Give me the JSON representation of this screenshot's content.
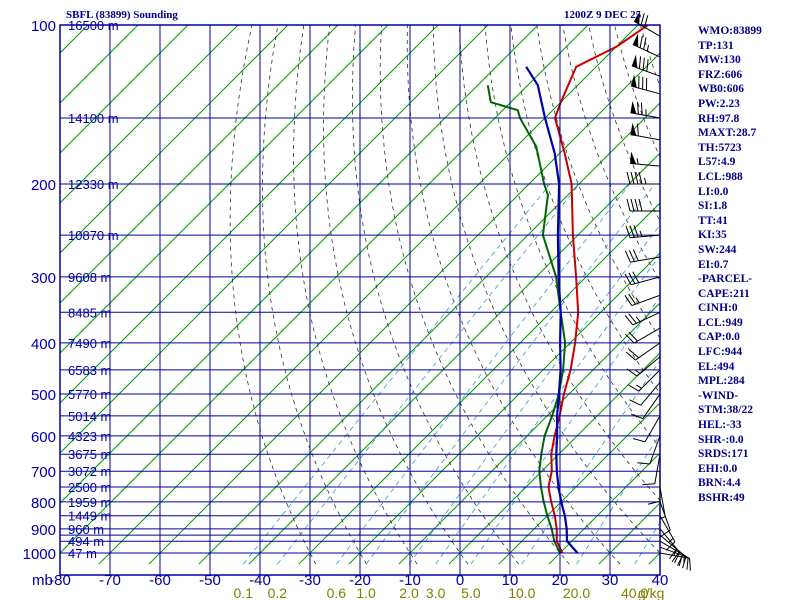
{
  "colors": {
    "frame": "#0000a0",
    "isotherm": "#009900",
    "dry_adiabat": "#333333",
    "mixing_ratio": "#3399cc",
    "temperature": "#cc0000",
    "dewpoint": "#006600",
    "parcel": "#0000aa",
    "wind": "#000000",
    "text": "#00008b",
    "mixing_label": "#808000"
  },
  "header": {
    "station": "SBFL (83899) Sounding",
    "time": "1200Z  9 DEC 25"
  },
  "chart_data": {
    "type": "skew-t",
    "title": "SBFL (83899) Sounding",
    "subtitle": "1200Z  9 DEC 25",
    "y_axis_unit": "mb",
    "x_axis_unit": "°C",
    "mixing_ratio_unit": "g/kg",
    "pressure_levels": [
      {
        "p": 100,
        "label": "100"
      },
      {
        "p": 150,
        "label": ""
      },
      {
        "p": 200,
        "label": "200"
      },
      {
        "p": 250,
        "label": ""
      },
      {
        "p": 300,
        "label": "300"
      },
      {
        "p": 350,
        "label": ""
      },
      {
        "p": 400,
        "label": "400"
      },
      {
        "p": 450,
        "label": ""
      },
      {
        "p": 500,
        "label": "500"
      },
      {
        "p": 550,
        "label": ""
      },
      {
        "p": 600,
        "label": "600"
      },
      {
        "p": 650,
        "label": ""
      },
      {
        "p": 700,
        "label": "700"
      },
      {
        "p": 750,
        "label": ""
      },
      {
        "p": 800,
        "label": "800"
      },
      {
        "p": 850,
        "label": ""
      },
      {
        "p": 900,
        "label": "900"
      },
      {
        "p": 925,
        "label": ""
      },
      {
        "p": 950,
        "label": ""
      },
      {
        "p": 1000,
        "label": "1000"
      }
    ],
    "height_labels": [
      {
        "p": 100,
        "label": "16500 m"
      },
      {
        "p": 150,
        "label": "14100 m"
      },
      {
        "p": 200,
        "label": "12330 m"
      },
      {
        "p": 250,
        "label": "10870 m"
      },
      {
        "p": 300,
        "label": "9608 m"
      },
      {
        "p": 350,
        "label": "8485 m"
      },
      {
        "p": 400,
        "label": "7490 m"
      },
      {
        "p": 450,
        "label": "6583 m"
      },
      {
        "p": 500,
        "label": "5770 m"
      },
      {
        "p": 550,
        "label": "5014 m"
      },
      {
        "p": 600,
        "label": "4323 m"
      },
      {
        "p": 650,
        "label": "3675 m"
      },
      {
        "p": 700,
        "label": "3072 m"
      },
      {
        "p": 750,
        "label": "2500 m"
      },
      {
        "p": 800,
        "label": "1959 m"
      },
      {
        "p": 850,
        "label": "1449 m"
      },
      {
        "p": 900,
        "label": "960 m"
      },
      {
        "p": 950,
        "label": "494 m"
      },
      {
        "p": 1000,
        "label": "47 m"
      }
    ],
    "x_ticks": [
      "-80",
      "-70",
      "-60",
      "-50",
      "-40",
      "-30",
      "-20",
      "-10",
      "0",
      "10",
      "20",
      "30",
      "40"
    ],
    "x_tick_values": [
      -80,
      -70,
      -60,
      -50,
      -40,
      -30,
      -20,
      -10,
      0,
      10,
      20,
      30,
      40
    ],
    "mixing_ratio_labels": [
      "0.1",
      "0.2",
      "0.6",
      "1.0",
      "2.0",
      "3.0",
      "5.0",
      "10.0",
      "20.0",
      "40.0"
    ],
    "mixing_ratio_values": [
      0.1,
      0.2,
      0.6,
      1.0,
      2.0,
      3.0,
      5.0,
      10.0,
      20.0,
      40.0
    ],
    "x_range": [
      -80,
      40
    ],
    "p_range": [
      100,
      1050
    ],
    "series": [
      {
        "name": "temperature",
        "points": [
          [
            1000,
            20.5
          ],
          [
            950,
            17
          ],
          [
            900,
            14.5
          ],
          [
            850,
            11.5
          ],
          [
            800,
            8
          ],
          [
            750,
            4.5
          ],
          [
            700,
            2
          ],
          [
            650,
            -1.5
          ],
          [
            600,
            -4.5
          ],
          [
            550,
            -7.5
          ],
          [
            500,
            -11
          ],
          [
            450,
            -14.5
          ],
          [
            400,
            -19
          ],
          [
            350,
            -24.5
          ],
          [
            300,
            -32
          ],
          [
            250,
            -41
          ],
          [
            200,
            -51.5
          ],
          [
            175,
            -59
          ],
          [
            150,
            -68
          ],
          [
            140,
            -70
          ],
          [
            120,
            -74
          ],
          [
            110,
            -70
          ],
          [
            100,
            -68
          ]
        ]
      },
      {
        "name": "dewpoint",
        "points": [
          [
            1000,
            20
          ],
          [
            950,
            16.5
          ],
          [
            900,
            13.5
          ],
          [
            850,
            10
          ],
          [
            800,
            6.5
          ],
          [
            750,
            3
          ],
          [
            700,
            -0.5
          ],
          [
            650,
            -3.5
          ],
          [
            600,
            -6.5
          ],
          [
            550,
            -9
          ],
          [
            500,
            -12
          ],
          [
            450,
            -16
          ],
          [
            400,
            -21
          ],
          [
            350,
            -28
          ],
          [
            300,
            -36
          ],
          [
            250,
            -47
          ],
          [
            210,
            -54
          ],
          [
            200,
            -57
          ],
          [
            170,
            -66
          ],
          [
            150,
            -75
          ],
          [
            145,
            -77
          ],
          [
            140,
            -84
          ],
          [
            130,
            -88
          ]
        ]
      },
      {
        "name": "parcel",
        "points": [
          [
            1000,
            23.5
          ],
          [
            949,
            19
          ],
          [
            900,
            16.5
          ],
          [
            850,
            13.5
          ],
          [
            800,
            10
          ],
          [
            750,
            6.5
          ],
          [
            700,
            3
          ],
          [
            650,
            -0.5
          ],
          [
            600,
            -4
          ],
          [
            550,
            -8
          ],
          [
            500,
            -12
          ],
          [
            450,
            -16.5
          ],
          [
            400,
            -22
          ],
          [
            350,
            -28
          ],
          [
            300,
            -35.5
          ],
          [
            250,
            -44
          ],
          [
            200,
            -54
          ],
          [
            175,
            -61
          ],
          [
            150,
            -70
          ],
          [
            130,
            -78
          ],
          [
            120,
            -84
          ]
        ]
      }
    ]
  },
  "indices": [
    "WMO:83899",
    "TP:131",
    "MW:130",
    "FRZ:606",
    "WB0:606",
    "PW:2.23",
    "RH:97.8",
    "MAXT:28.7",
    "TH:5723",
    "L57:4.9",
    "LCL:988",
    "LI:0.0",
    "SI:1.8",
    "TT:41",
    "KI:35",
    "SW:244",
    "EI:0.7",
    "-PARCEL-",
    "CAPE:211",
    "CINH:0",
    "LCL:949",
    "CAP:0.0",
    "LFC:944",
    "EL:494",
    "MPL:284",
    "-WIND-",
    "STM:38/22",
    "HEL:-33",
    "SHR-:0.0",
    "SRDS:171",
    "EHI:0.0",
    "BRN:4.4",
    "BSHR:49"
  ],
  "winds": [
    {
      "p": 105,
      "dir": 300,
      "spd": 70
    },
    {
      "p": 115,
      "dir": 295,
      "spd": 75
    },
    {
      "p": 125,
      "dir": 290,
      "spd": 80
    },
    {
      "p": 135,
      "dir": 285,
      "spd": 80
    },
    {
      "p": 150,
      "dir": 280,
      "spd": 75
    },
    {
      "p": 165,
      "dir": 280,
      "spd": 60
    },
    {
      "p": 185,
      "dir": 275,
      "spd": 55
    },
    {
      "p": 200,
      "dir": 270,
      "spd": 45
    },
    {
      "p": 225,
      "dir": 270,
      "spd": 40
    },
    {
      "p": 250,
      "dir": 265,
      "spd": 35
    },
    {
      "p": 275,
      "dir": 260,
      "spd": 30
    },
    {
      "p": 300,
      "dir": 255,
      "spd": 30
    },
    {
      "p": 325,
      "dir": 250,
      "spd": 25
    },
    {
      "p": 350,
      "dir": 245,
      "spd": 25
    },
    {
      "p": 375,
      "dir": 240,
      "spd": 20
    },
    {
      "p": 400,
      "dir": 235,
      "spd": 20
    },
    {
      "p": 425,
      "dir": 230,
      "spd": 15
    },
    {
      "p": 450,
      "dir": 225,
      "spd": 15
    },
    {
      "p": 475,
      "dir": 220,
      "spd": 10
    },
    {
      "p": 500,
      "dir": 215,
      "spd": 10
    },
    {
      "p": 550,
      "dir": 210,
      "spd": 10
    },
    {
      "p": 600,
      "dir": 200,
      "spd": 10
    },
    {
      "p": 650,
      "dir": 190,
      "spd": 10
    },
    {
      "p": 700,
      "dir": 180,
      "spd": 10
    },
    {
      "p": 750,
      "dir": 170,
      "spd": 5
    },
    {
      "p": 800,
      "dir": 160,
      "spd": 10
    },
    {
      "p": 850,
      "dir": 150,
      "spd": 15
    },
    {
      "p": 900,
      "dir": 140,
      "spd": 20
    },
    {
      "p": 925,
      "dir": 130,
      "spd": 25
    },
    {
      "p": 950,
      "dir": 120,
      "spd": 20
    },
    {
      "p": 975,
      "dir": 110,
      "spd": 15
    },
    {
      "p": 1000,
      "dir": 100,
      "spd": 10
    }
  ]
}
